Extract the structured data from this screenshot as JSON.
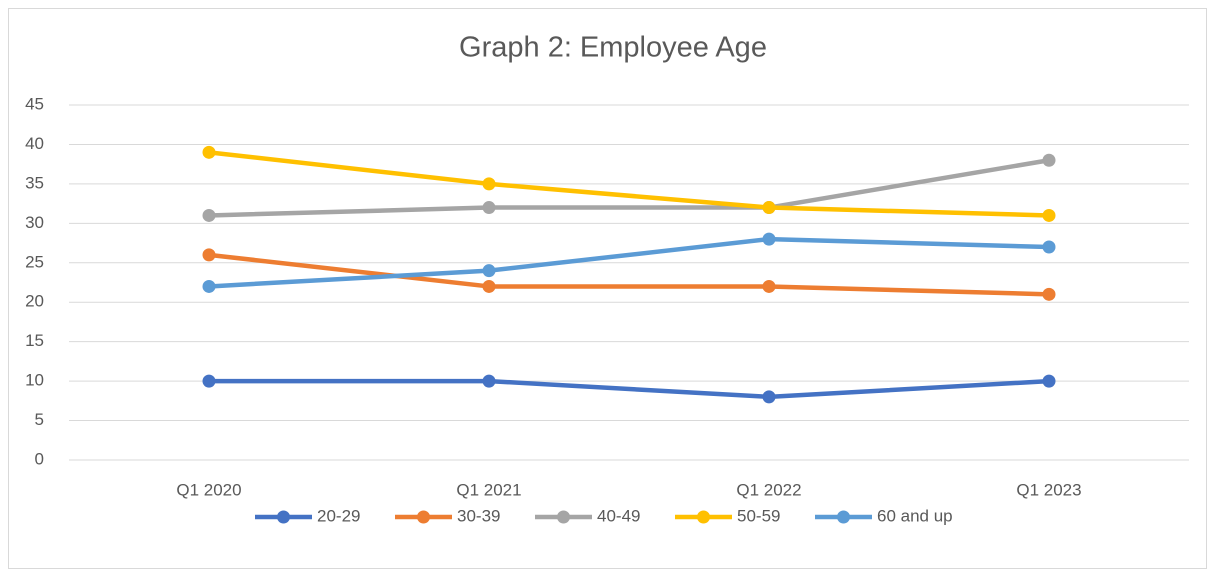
{
  "chart_data": {
    "type": "line",
    "title": "Graph 2:  Employee Age",
    "categories": [
      "Q1 2020",
      "Q1 2021",
      "Q1 2022",
      "Q1 2023"
    ],
    "series": [
      {
        "name": "20-29",
        "color": "#4472c4",
        "values": [
          10,
          10,
          8,
          10
        ]
      },
      {
        "name": "30-39",
        "color": "#ed7d31",
        "values": [
          26,
          22,
          22,
          21
        ]
      },
      {
        "name": "40-49",
        "color": "#a5a5a5",
        "values": [
          31,
          32,
          32,
          38
        ]
      },
      {
        "name": "50-59",
        "color": "#ffc000",
        "values": [
          39,
          35,
          32,
          31
        ]
      },
      {
        "name": "60 and up",
        "color": "#5b9bd5",
        "values": [
          22,
          24,
          28,
          27
        ]
      }
    ],
    "ylim": [
      0,
      45
    ],
    "yticks": [
      0,
      5,
      10,
      15,
      20,
      25,
      30,
      35,
      40,
      45
    ],
    "grid": true,
    "legend": "bottom"
  }
}
